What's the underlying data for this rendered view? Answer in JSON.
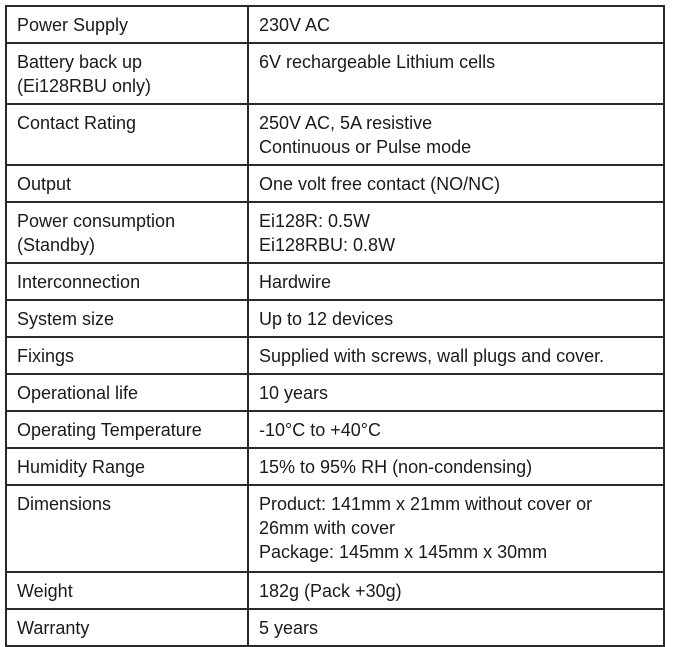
{
  "spec_table": {
    "rows": [
      {
        "label": [
          "Power Supply"
        ],
        "value": [
          "230V AC"
        ]
      },
      {
        "label": [
          "Battery back up",
          "(Ei128RBU only)"
        ],
        "value": [
          "6V rechargeable Lithium cells"
        ]
      },
      {
        "label": [
          "Contact Rating"
        ],
        "value": [
          "250V AC, 5A resistive",
          "Continuous or Pulse mode"
        ]
      },
      {
        "label": [
          "Output"
        ],
        "value": [
          "One volt free contact (NO/NC)"
        ]
      },
      {
        "label": [
          "Power consumption",
          "(Standby)"
        ],
        "value": [
          "Ei128R: 0.5W",
          "Ei128RBU: 0.8W"
        ]
      },
      {
        "label": [
          "Interconnection"
        ],
        "value": [
          "Hardwire"
        ]
      },
      {
        "label": [
          "System size"
        ],
        "value": [
          "Up to 12 devices"
        ]
      },
      {
        "label": [
          "Fixings"
        ],
        "value": [
          "Supplied with screws, wall plugs and cover."
        ]
      },
      {
        "label": [
          "Operational life"
        ],
        "value": [
          "10 years"
        ]
      },
      {
        "label": [
          "Operating Temperature"
        ],
        "value": [
          "-10°C to +40°C"
        ]
      },
      {
        "label": [
          "Humidity Range"
        ],
        "value": [
          "15% to 95% RH (non-condensing)"
        ]
      },
      {
        "label": [
          "Dimensions"
        ],
        "value": [
          "Product: 141mm x 21mm without cover or",
          "26mm with cover",
          "Package: 145mm x 145mm x 30mm"
        ]
      },
      {
        "label": [
          "Weight"
        ],
        "value": [
          "182g (Pack +30g)"
        ]
      },
      {
        "label": [
          "Warranty"
        ],
        "value": [
          "5 years"
        ]
      }
    ]
  }
}
